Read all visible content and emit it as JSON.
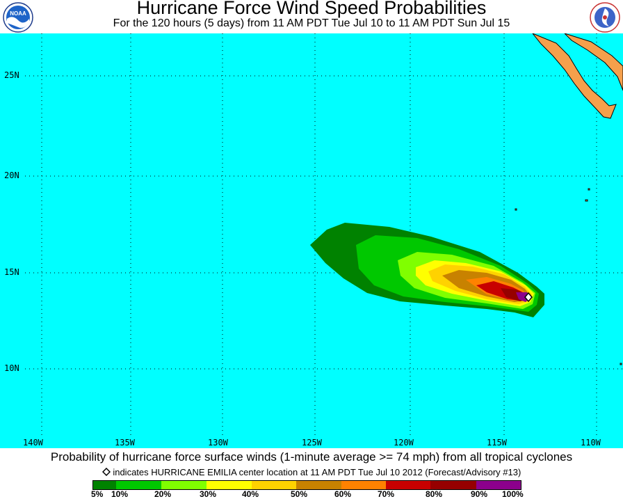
{
  "header": {
    "title": "Hurricane Force Wind Speed Probabilities",
    "subtitle": "For the 120 hours (5 days) from 11 AM PDT Tue Jul 10 to 11 AM PDT Sun Jul 15",
    "left_logo": {
      "icon": "noaa-logo-icon",
      "text": "NOAA"
    },
    "right_logo": {
      "icon": "national-weather-service-logo-icon"
    }
  },
  "map": {
    "ocean_color": "#00ffff",
    "land_color": "#f5a04c",
    "lat_labels": [
      "25N",
      "20N",
      "15N",
      "10N"
    ],
    "lon_labels": [
      "140W",
      "135W",
      "130W",
      "125W",
      "120W",
      "115W",
      "110W"
    ],
    "storm_marker": {
      "icon": "storm-center-diamond-icon"
    }
  },
  "footer": {
    "caption": "Probability of hurricane force surface winds (1-minute average >= 74 mph) from all tropical cyclones",
    "center_note": "indicates HURRICANE EMILIA center location at 11 AM PDT Tue Jul 10 2012 (Forecast/Advisory #13)"
  },
  "legend": {
    "colors": [
      "#008200",
      "#00c800",
      "#80ff00",
      "#ffff00",
      "#ffd200",
      "#c88200",
      "#ff8200",
      "#c80000",
      "#960000",
      "#8c008c"
    ],
    "labels": [
      "5%",
      "10%",
      "20%",
      "30%",
      "40%",
      "50%",
      "60%",
      "70%",
      "80%",
      "90%",
      "100%"
    ]
  }
}
